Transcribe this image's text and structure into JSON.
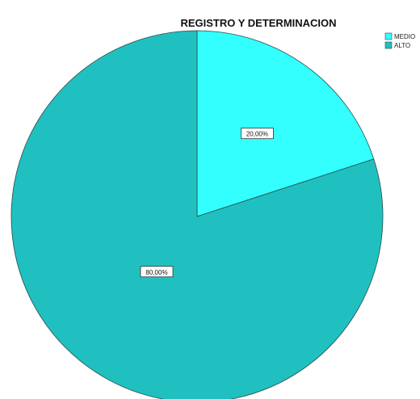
{
  "chart_data": {
    "type": "pie",
    "title": "REGISTRO Y DETERMINACION",
    "slices": [
      {
        "name": "MEDIO",
        "value": 20.0,
        "label": "20,00%",
        "color": "#33ffff"
      },
      {
        "name": "ALTO",
        "value": 80.0,
        "label": "80,00%",
        "color": "#20c0c0"
      }
    ],
    "legend_position": "top-right"
  }
}
